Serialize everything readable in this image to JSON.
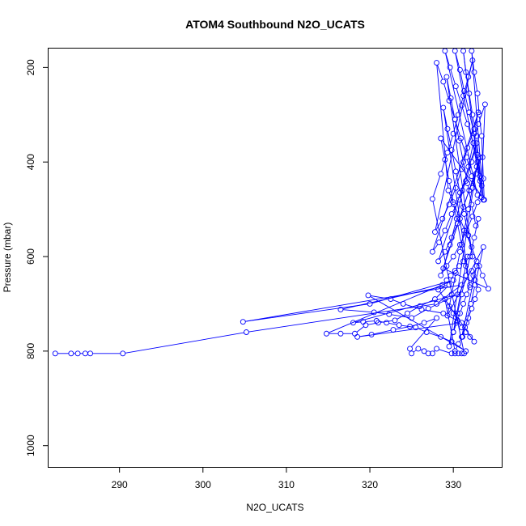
{
  "chart_data": {
    "type": "scatter",
    "title": "ATOM4 Southbound N2O_UCATS",
    "xlabel": "N2O_UCATS",
    "ylabel": "Pressure (mbar)",
    "xlim": [
      281.5,
      335.8
    ],
    "ylim": [
      1045,
      160
    ],
    "y_reversed": true,
    "x_ticks": [
      290,
      300,
      310,
      320,
      330
    ],
    "y_ticks": [
      200,
      400,
      600,
      800,
      1000
    ],
    "grid": false,
    "marker": "open-circle",
    "color": "#0000ff",
    "series": [
      {
        "points": [
          [
            282.3,
            805
          ],
          [
            284.2,
            805
          ],
          [
            285.0,
            805
          ],
          [
            285.9,
            805
          ],
          [
            286.5,
            805
          ],
          [
            290.4,
            805
          ],
          [
            305.2,
            760
          ],
          [
            328.0,
            700
          ],
          [
            331.0,
            660
          ],
          [
            304.8,
            738
          ],
          [
            320.0,
            700
          ],
          [
            330.0,
            650
          ],
          [
            314.8,
            763
          ],
          [
            316.5,
            763
          ],
          [
            318.2,
            763
          ],
          [
            319.5,
            745
          ],
          [
            321.0,
            740
          ],
          [
            323.0,
            735
          ],
          [
            324.5,
            720
          ],
          [
            326.0,
            705
          ],
          [
            327.8,
            690
          ],
          [
            329.5,
            660
          ],
          [
            316.5,
            712
          ],
          [
            320.5,
            718
          ],
          [
            322.3,
            722
          ],
          [
            325.0,
            730
          ],
          [
            327.0,
            710
          ],
          [
            330.5,
            680
          ],
          [
            318.0,
            740
          ],
          [
            319.2,
            738
          ],
          [
            320.8,
            736
          ],
          [
            322.0,
            740
          ],
          [
            323.5,
            745
          ],
          [
            325.5,
            750
          ],
          [
            326.8,
            760
          ],
          [
            328.5,
            770
          ],
          [
            329.8,
            780
          ],
          [
            331.5,
            800
          ],
          [
            319.8,
            682
          ],
          [
            322.5,
            690
          ],
          [
            324.0,
            700
          ],
          [
            326.2,
            712
          ],
          [
            328.8,
            720
          ],
          [
            331.0,
            740
          ],
          [
            318.5,
            770
          ],
          [
            320.2,
            765
          ],
          [
            322.8,
            755
          ],
          [
            324.8,
            748
          ],
          [
            326.5,
            740
          ],
          [
            328.0,
            730
          ],
          [
            324.8,
            795
          ],
          [
            325.0,
            805
          ],
          [
            325.8,
            795
          ],
          [
            326.5,
            800
          ],
          [
            327.0,
            805
          ],
          [
            327.5,
            805
          ],
          [
            328.0,
            795
          ],
          [
            329.8,
            805
          ],
          [
            330.2,
            805
          ],
          [
            330.6,
            805
          ],
          [
            331.0,
            805
          ],
          [
            331.3,
            805
          ],
          [
            327.5,
            478
          ],
          [
            328.5,
            425
          ],
          [
            329.3,
            380
          ],
          [
            330.0,
            340
          ],
          [
            330.6,
            300
          ],
          [
            331.2,
            260
          ],
          [
            331.8,
            220
          ],
          [
            332.3,
            185
          ],
          [
            327.8,
            548
          ],
          [
            328.7,
            520
          ],
          [
            329.5,
            490
          ],
          [
            330.3,
            455
          ],
          [
            331.0,
            415
          ],
          [
            331.7,
            370
          ],
          [
            332.5,
            330
          ],
          [
            333.0,
            295
          ],
          [
            327.5,
            590
          ],
          [
            328.3,
            570
          ],
          [
            329.0,
            545
          ],
          [
            329.8,
            510
          ],
          [
            330.7,
            480
          ],
          [
            331.5,
            440
          ],
          [
            332.2,
            400
          ],
          [
            332.8,
            360
          ],
          [
            328.2,
            610
          ],
          [
            329.0,
            590
          ],
          [
            329.8,
            560
          ],
          [
            330.5,
            530
          ],
          [
            331.2,
            495
          ],
          [
            331.9,
            460
          ],
          [
            332.7,
            425
          ],
          [
            333.2,
            390
          ],
          [
            328.5,
            640
          ],
          [
            329.2,
            620
          ],
          [
            330.0,
            600
          ],
          [
            330.8,
            575
          ],
          [
            331.6,
            545
          ],
          [
            332.3,
            515
          ],
          [
            332.9,
            485
          ],
          [
            333.4,
            450
          ],
          [
            333.8,
            278
          ],
          [
            333.0,
            320
          ],
          [
            332.4,
            360
          ],
          [
            331.8,
            410
          ],
          [
            331.1,
            460
          ],
          [
            330.4,
            520
          ],
          [
            329.6,
            575
          ],
          [
            328.8,
            625
          ],
          [
            334.2,
            668
          ],
          [
            333.5,
            640
          ],
          [
            332.8,
            610
          ],
          [
            332.2,
            580
          ],
          [
            331.5,
            550
          ],
          [
            330.8,
            520
          ],
          [
            330.1,
            490
          ],
          [
            329.4,
            460
          ],
          [
            328.0,
            190
          ],
          [
            328.8,
            230
          ],
          [
            329.5,
            270
          ],
          [
            330.2,
            310
          ],
          [
            330.9,
            350
          ],
          [
            331.6,
            390
          ],
          [
            332.2,
            430
          ],
          [
            332.9,
            470
          ],
          [
            329.0,
            165
          ],
          [
            329.6,
            200
          ],
          [
            330.3,
            240
          ],
          [
            331.0,
            280
          ],
          [
            331.7,
            320
          ],
          [
            332.4,
            360
          ],
          [
            332.9,
            400
          ],
          [
            333.2,
            440
          ],
          [
            330.2,
            165
          ],
          [
            330.8,
            205
          ],
          [
            331.3,
            250
          ],
          [
            331.9,
            295
          ],
          [
            332.5,
            340
          ],
          [
            332.9,
            385
          ],
          [
            333.2,
            430
          ],
          [
            333.4,
            475
          ],
          [
            331.2,
            165
          ],
          [
            331.5,
            210
          ],
          [
            331.9,
            255
          ],
          [
            332.3,
            300
          ],
          [
            332.8,
            345
          ],
          [
            333.0,
            390
          ],
          [
            333.3,
            435
          ],
          [
            333.6,
            480
          ],
          [
            332.2,
            165
          ],
          [
            332.5,
            210
          ],
          [
            332.9,
            255
          ],
          [
            333.1,
            300
          ],
          [
            333.4,
            345
          ],
          [
            333.5,
            390
          ],
          [
            333.6,
            435
          ],
          [
            333.7,
            480
          ],
          [
            328.5,
            350
          ],
          [
            329.0,
            395
          ],
          [
            329.5,
            440
          ],
          [
            330.0,
            485
          ],
          [
            330.5,
            530
          ],
          [
            331.0,
            575
          ],
          [
            331.5,
            620
          ],
          [
            332.0,
            665
          ],
          [
            328.8,
            285
          ],
          [
            329.3,
            330
          ],
          [
            329.8,
            375
          ],
          [
            330.3,
            420
          ],
          [
            330.8,
            465
          ],
          [
            331.3,
            510
          ],
          [
            331.8,
            555
          ],
          [
            332.3,
            600
          ],
          [
            329.2,
            220
          ],
          [
            329.7,
            265
          ],
          [
            330.2,
            310
          ],
          [
            330.7,
            355
          ],
          [
            331.2,
            400
          ],
          [
            331.7,
            445
          ],
          [
            332.2,
            490
          ],
          [
            332.7,
            535
          ],
          [
            333.0,
            520
          ],
          [
            332.5,
            560
          ],
          [
            332.0,
            600
          ],
          [
            331.5,
            640
          ],
          [
            331.0,
            680
          ],
          [
            330.5,
            720
          ],
          [
            330.0,
            760
          ],
          [
            329.5,
            790
          ],
          [
            332.8,
            410
          ],
          [
            332.3,
            455
          ],
          [
            331.8,
            500
          ],
          [
            331.3,
            545
          ],
          [
            330.8,
            590
          ],
          [
            330.3,
            635
          ],
          [
            329.8,
            680
          ],
          [
            329.3,
            725
          ],
          [
            333.6,
            580
          ],
          [
            333.1,
            620
          ],
          [
            332.6,
            660
          ],
          [
            332.1,
            700
          ],
          [
            331.6,
            740
          ],
          [
            331.1,
            770
          ],
          [
            330.6,
            785
          ],
          [
            330.2,
            800
          ],
          [
            329.0,
            690
          ],
          [
            329.5,
            705
          ],
          [
            330.0,
            720
          ],
          [
            330.5,
            735
          ],
          [
            331.0,
            750
          ],
          [
            331.5,
            760
          ],
          [
            332.0,
            770
          ],
          [
            332.5,
            780
          ],
          [
            328.2,
            670
          ],
          [
            328.7,
            660
          ],
          [
            329.2,
            650
          ],
          [
            329.7,
            640
          ],
          [
            330.2,
            630
          ],
          [
            330.7,
            620
          ],
          [
            331.2,
            610
          ],
          [
            331.7,
            600
          ],
          [
            330.0,
            760
          ],
          [
            330.4,
            740
          ],
          [
            330.8,
            720
          ],
          [
            331.2,
            700
          ],
          [
            331.6,
            680
          ],
          [
            332.0,
            660
          ],
          [
            332.4,
            640
          ],
          [
            332.8,
            620
          ],
          [
            331.0,
            770
          ],
          [
            331.4,
            750
          ],
          [
            331.8,
            730
          ],
          [
            332.2,
            710
          ],
          [
            332.6,
            690
          ],
          [
            333.0,
            670
          ],
          [
            332.6,
            650
          ],
          [
            332.2,
            630
          ]
        ]
      }
    ]
  }
}
